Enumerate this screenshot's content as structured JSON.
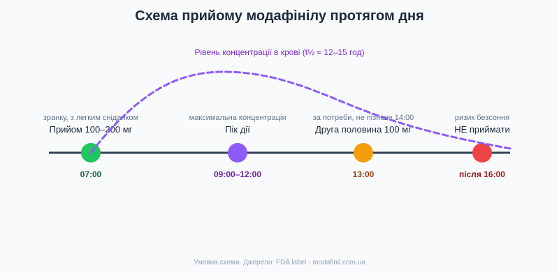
{
  "title": "Схема прийому модафінілу протягом дня",
  "curve_label": "Рівень концентрації в крові (t½ ≈ 12–15 год)",
  "footer": "Умовна схема. Джерело: FDA label · modafinil.com.ua",
  "colors": {
    "axis": "#334155",
    "curve": "#8b5cf6",
    "title": "#1e293b"
  },
  "events": [
    {
      "note": "зранку, з легким сніданком",
      "label": "Прийом 100–200 мг",
      "time": "07:00",
      "dot_color": "#22c55e",
      "time_color": "#166534"
    },
    {
      "note": "максимальна концентрація",
      "label": "Пік дії",
      "time": "09:00–12:00",
      "dot_color": "#8b5cf6",
      "time_color": "#6b21a8"
    },
    {
      "note": "за потреби, не пізніше 14:00",
      "label": "Друга половина 100 мг",
      "time": "13:00",
      "dot_color": "#f59e0b",
      "time_color": "#92400e"
    },
    {
      "note": "ризик безсоння",
      "label": "НЕ приймати",
      "time": "після 16:00",
      "dot_color": "#ef4444",
      "time_color": "#991b1b"
    }
  ]
}
